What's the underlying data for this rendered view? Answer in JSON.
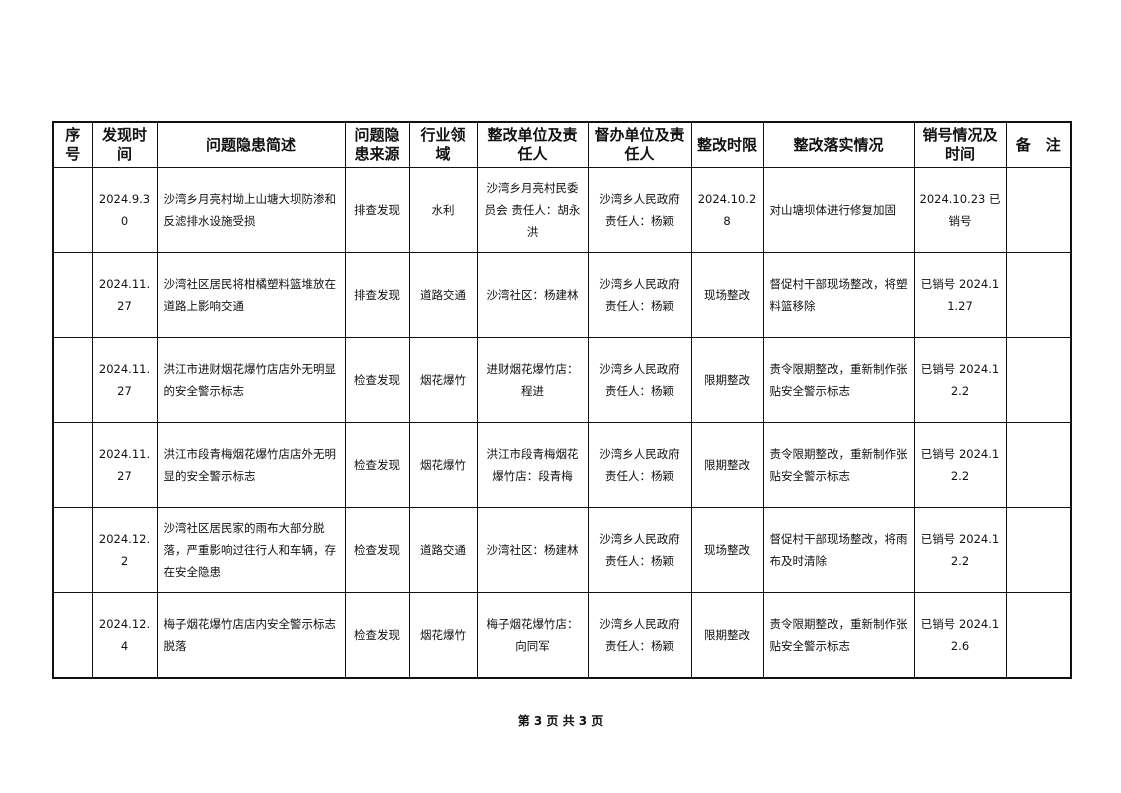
{
  "table": {
    "headers": [
      "序号",
      "发现时间",
      "问题隐患简述",
      "问题隐患来源",
      "行业领域",
      "整改单位及责任人",
      "督办单位及责任人",
      "整改时限",
      "整改落实情况",
      "销号情况及时间",
      "备　注"
    ],
    "rows": [
      [
        "",
        "2024.9.30",
        "沙湾乡月亮村坳上山塘大坝防渗和反滤排水设施受损",
        "排查发现",
        "水利",
        "沙湾乡月亮村民委员会 责任人：胡永洪",
        "沙湾乡人民政府 责任人：杨颖",
        "2024.10.28",
        "对山塘坝体进行修复加固",
        "2024.10.23 已销号",
        ""
      ],
      [
        "",
        "2024.11.27",
        "沙湾社区居民将柑橘塑料篮堆放在道路上影响交通",
        "排查发现",
        "道路交通",
        "沙湾社区：杨建林",
        "沙湾乡人民政府 责任人：杨颖",
        "现场整改",
        "督促村干部现场整改，将塑料篮移除",
        "已销号 2024.11.27",
        ""
      ],
      [
        "",
        "2024.11.27",
        "洪江市进财烟花爆竹店店外无明显的安全警示标志",
        "检查发现",
        "烟花爆竹",
        "进财烟花爆竹店：程进",
        "沙湾乡人民政府 责任人：杨颖",
        "限期整改",
        "责令限期整改，重新制作张贴安全警示标志",
        "已销号 2024.12.2",
        ""
      ],
      [
        "",
        "2024.11.27",
        "洪江市段青梅烟花爆竹店店外无明显的安全警示标志",
        "检查发现",
        "烟花爆竹",
        "洪江市段青梅烟花爆竹店：段青梅",
        "沙湾乡人民政府 责任人：杨颖",
        "限期整改",
        "责令限期整改，重新制作张贴安全警示标志",
        "已销号 2024.12.2",
        ""
      ],
      [
        "",
        "2024.12.2",
        "沙湾社区居民家的雨布大部分脱落，严重影响过往行人和车辆，存在安全隐患",
        "检查发现",
        "道路交通",
        "沙湾社区：杨建林",
        "沙湾乡人民政府 责任人：杨颖",
        "现场整改",
        "督促村干部现场整改，将雨布及时清除",
        "已销号 2024.12.2",
        ""
      ],
      [
        "",
        "2024.12.4",
        "梅子烟花爆竹店店内安全警示标志脱落",
        "检查发现",
        "烟花爆竹",
        "梅子烟花爆竹店：向同军",
        "沙湾乡人民政府 责任人：杨颖",
        "限期整改",
        "责令限期整改，重新制作张贴安全警示标志",
        "已销号 2024.12.6",
        ""
      ]
    ]
  },
  "footer": {
    "page_label": "第 3 页 共 3 页"
  }
}
